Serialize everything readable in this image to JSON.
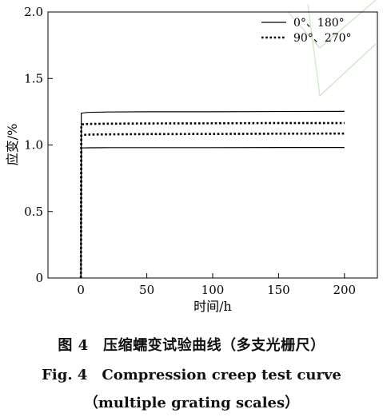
{
  "chart_data": {
    "type": "line",
    "xlabel": "时间/h",
    "ylabel": "应变/%",
    "xlim": [
      -25,
      225
    ],
    "ylim": [
      0,
      2.0
    ],
    "xticks": [
      0,
      50,
      100,
      150,
      200
    ],
    "xtick_labels": [
      "0",
      "50",
      "100",
      "150",
      "200"
    ],
    "yticks": [
      0,
      0.5,
      1.0,
      1.5,
      2.0
    ],
    "ytick_labels": [
      "0",
      "0.5",
      "1.0",
      "1.5",
      "2.0"
    ],
    "grid": false,
    "legend_position": "top-right",
    "series": [
      {
        "name": "0°、180°",
        "style": "solid",
        "color": "#000000",
        "curves": [
          {
            "x": [
              0,
              0.3,
              1,
              5,
              20,
              50,
              100,
              150,
              200
            ],
            "y": [
              0,
              1.24,
              1.24,
              1.245,
              1.248,
              1.25,
              1.25,
              1.252,
              1.253
            ]
          },
          {
            "x": [
              0,
              0.3,
              1,
              5,
              20,
              50,
              100,
              150,
              200
            ],
            "y": [
              0,
              0.97,
              0.978,
              0.979,
              0.98,
              0.98,
              0.98,
              0.981,
              0.981
            ]
          }
        ]
      },
      {
        "name": "90°、270°",
        "style": "dotted",
        "color": "#000000",
        "curves": [
          {
            "x": [
              0,
              0.3,
              1,
              5,
              20,
              50,
              100,
              150,
              200
            ],
            "y": [
              0,
              1.15,
              1.155,
              1.158,
              1.16,
              1.162,
              1.163,
              1.165,
              1.165
            ]
          },
          {
            "x": [
              0,
              0.3,
              1,
              5,
              20,
              50,
              100,
              150,
              200
            ],
            "y": [
              0,
              1.07,
              1.075,
              1.078,
              1.08,
              1.082,
              1.083,
              1.085,
              1.086
            ]
          }
        ]
      }
    ]
  },
  "caption": {
    "cn": "图 4　压缩蠕变试验曲线（多支光栅尺）",
    "en_line1": "Fig. 4　Compression creep test curve",
    "en_line2": "（multiple grating scales）"
  },
  "watermark_color": "#c8e6c0"
}
